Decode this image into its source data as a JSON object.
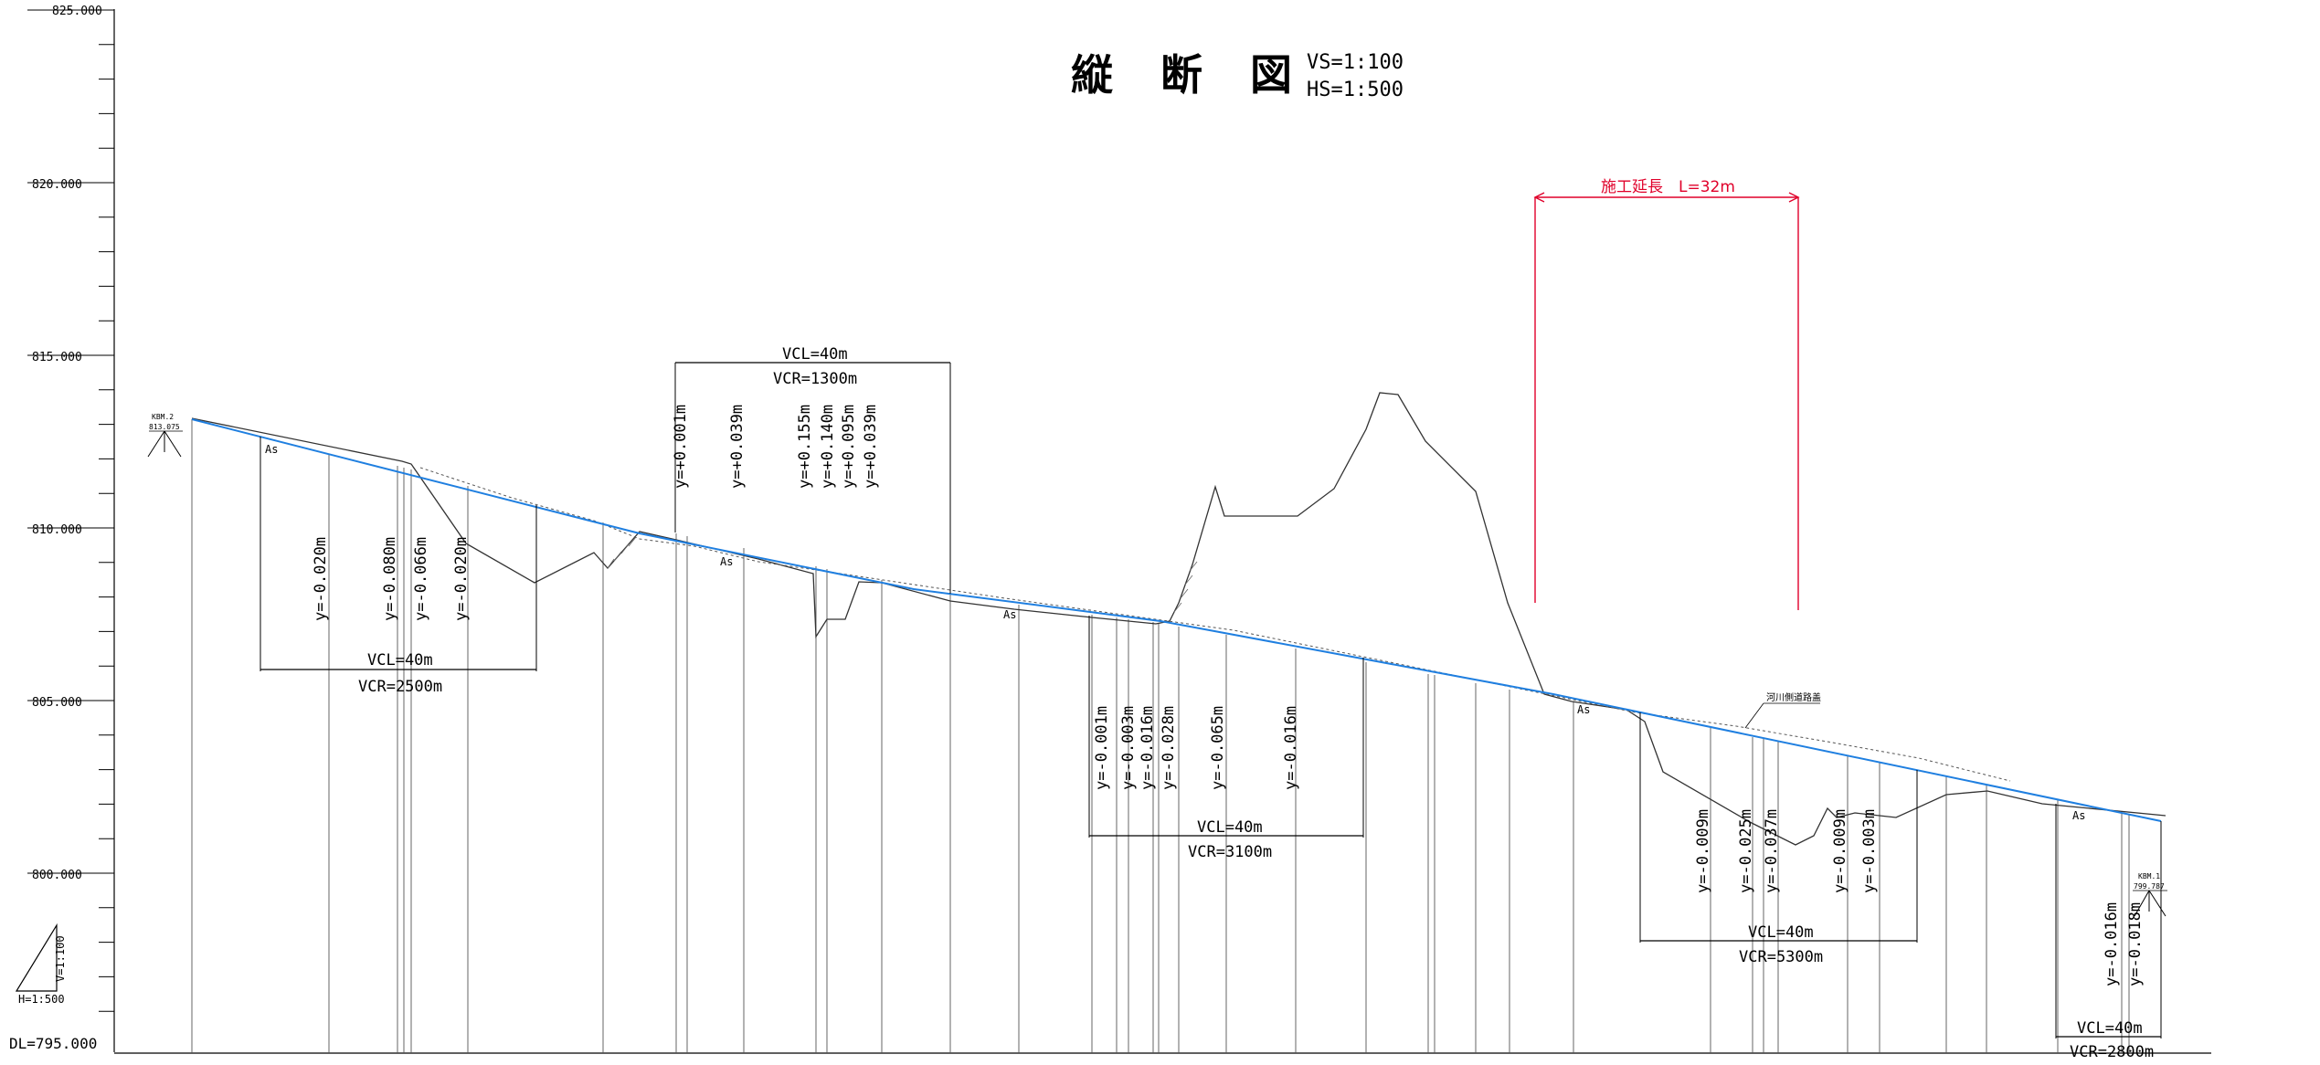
{
  "title": "縦 断 図",
  "scales": {
    "vs": "VS=1:100",
    "hs": "HS=1:500"
  },
  "datum": "DL=795.000",
  "elevation_labels": [
    "825.000",
    "820.000",
    "815.000",
    "810.000",
    "805.000",
    "800.000"
  ],
  "construction": {
    "label": "施工延長　L=32m",
    "color": "#e0002a"
  },
  "benchmarks": [
    {
      "name": "KBM.2",
      "elev": "813.075"
    },
    {
      "name": "KBM.1",
      "elev": "799.787"
    }
  ],
  "surface_code": "As",
  "road_note": "河川側道路盖",
  "scale_triangle": {
    "v": "V=1:100",
    "h": "H=1:500"
  },
  "vertical_curves": [
    {
      "vcl": "VCL=40m",
      "vcr": "VCR=2500m",
      "offsets": [
        "y=-0.020m",
        "y=-0.080m",
        "y=-0.066m",
        "y=-0.020m"
      ]
    },
    {
      "vcl": "VCL=40m",
      "vcr": "VCR=1300m",
      "offsets": [
        "y=+0.001m",
        "y=+0.039m",
        "y=+0.155m",
        "y=+0.140m",
        "y=+0.095m",
        "y=+0.039m"
      ]
    },
    {
      "vcl": "VCL=40m",
      "vcr": "VCR=3100m",
      "offsets": [
        "y=-0.001m",
        "y=-0.003m",
        "y=-0.016m",
        "y=-0.028m",
        "y=-0.065m",
        "y=-0.016m"
      ]
    },
    {
      "vcl": "VCL=40m",
      "vcr": "VCR=5300m",
      "offsets": [
        "y=-0.009m",
        "y=-0.025m",
        "y=-0.037m",
        "y=-0.009m",
        "y=-0.003m"
      ]
    },
    {
      "vcl": "VCL=40m",
      "vcr": "VCR=2800m",
      "offsets": [
        "y=-0.016m",
        "y=-0.018m"
      ]
    }
  ],
  "colors": {
    "plan_line": "#1f7fe0",
    "ground": "#333333",
    "construction": "#e0002a"
  }
}
